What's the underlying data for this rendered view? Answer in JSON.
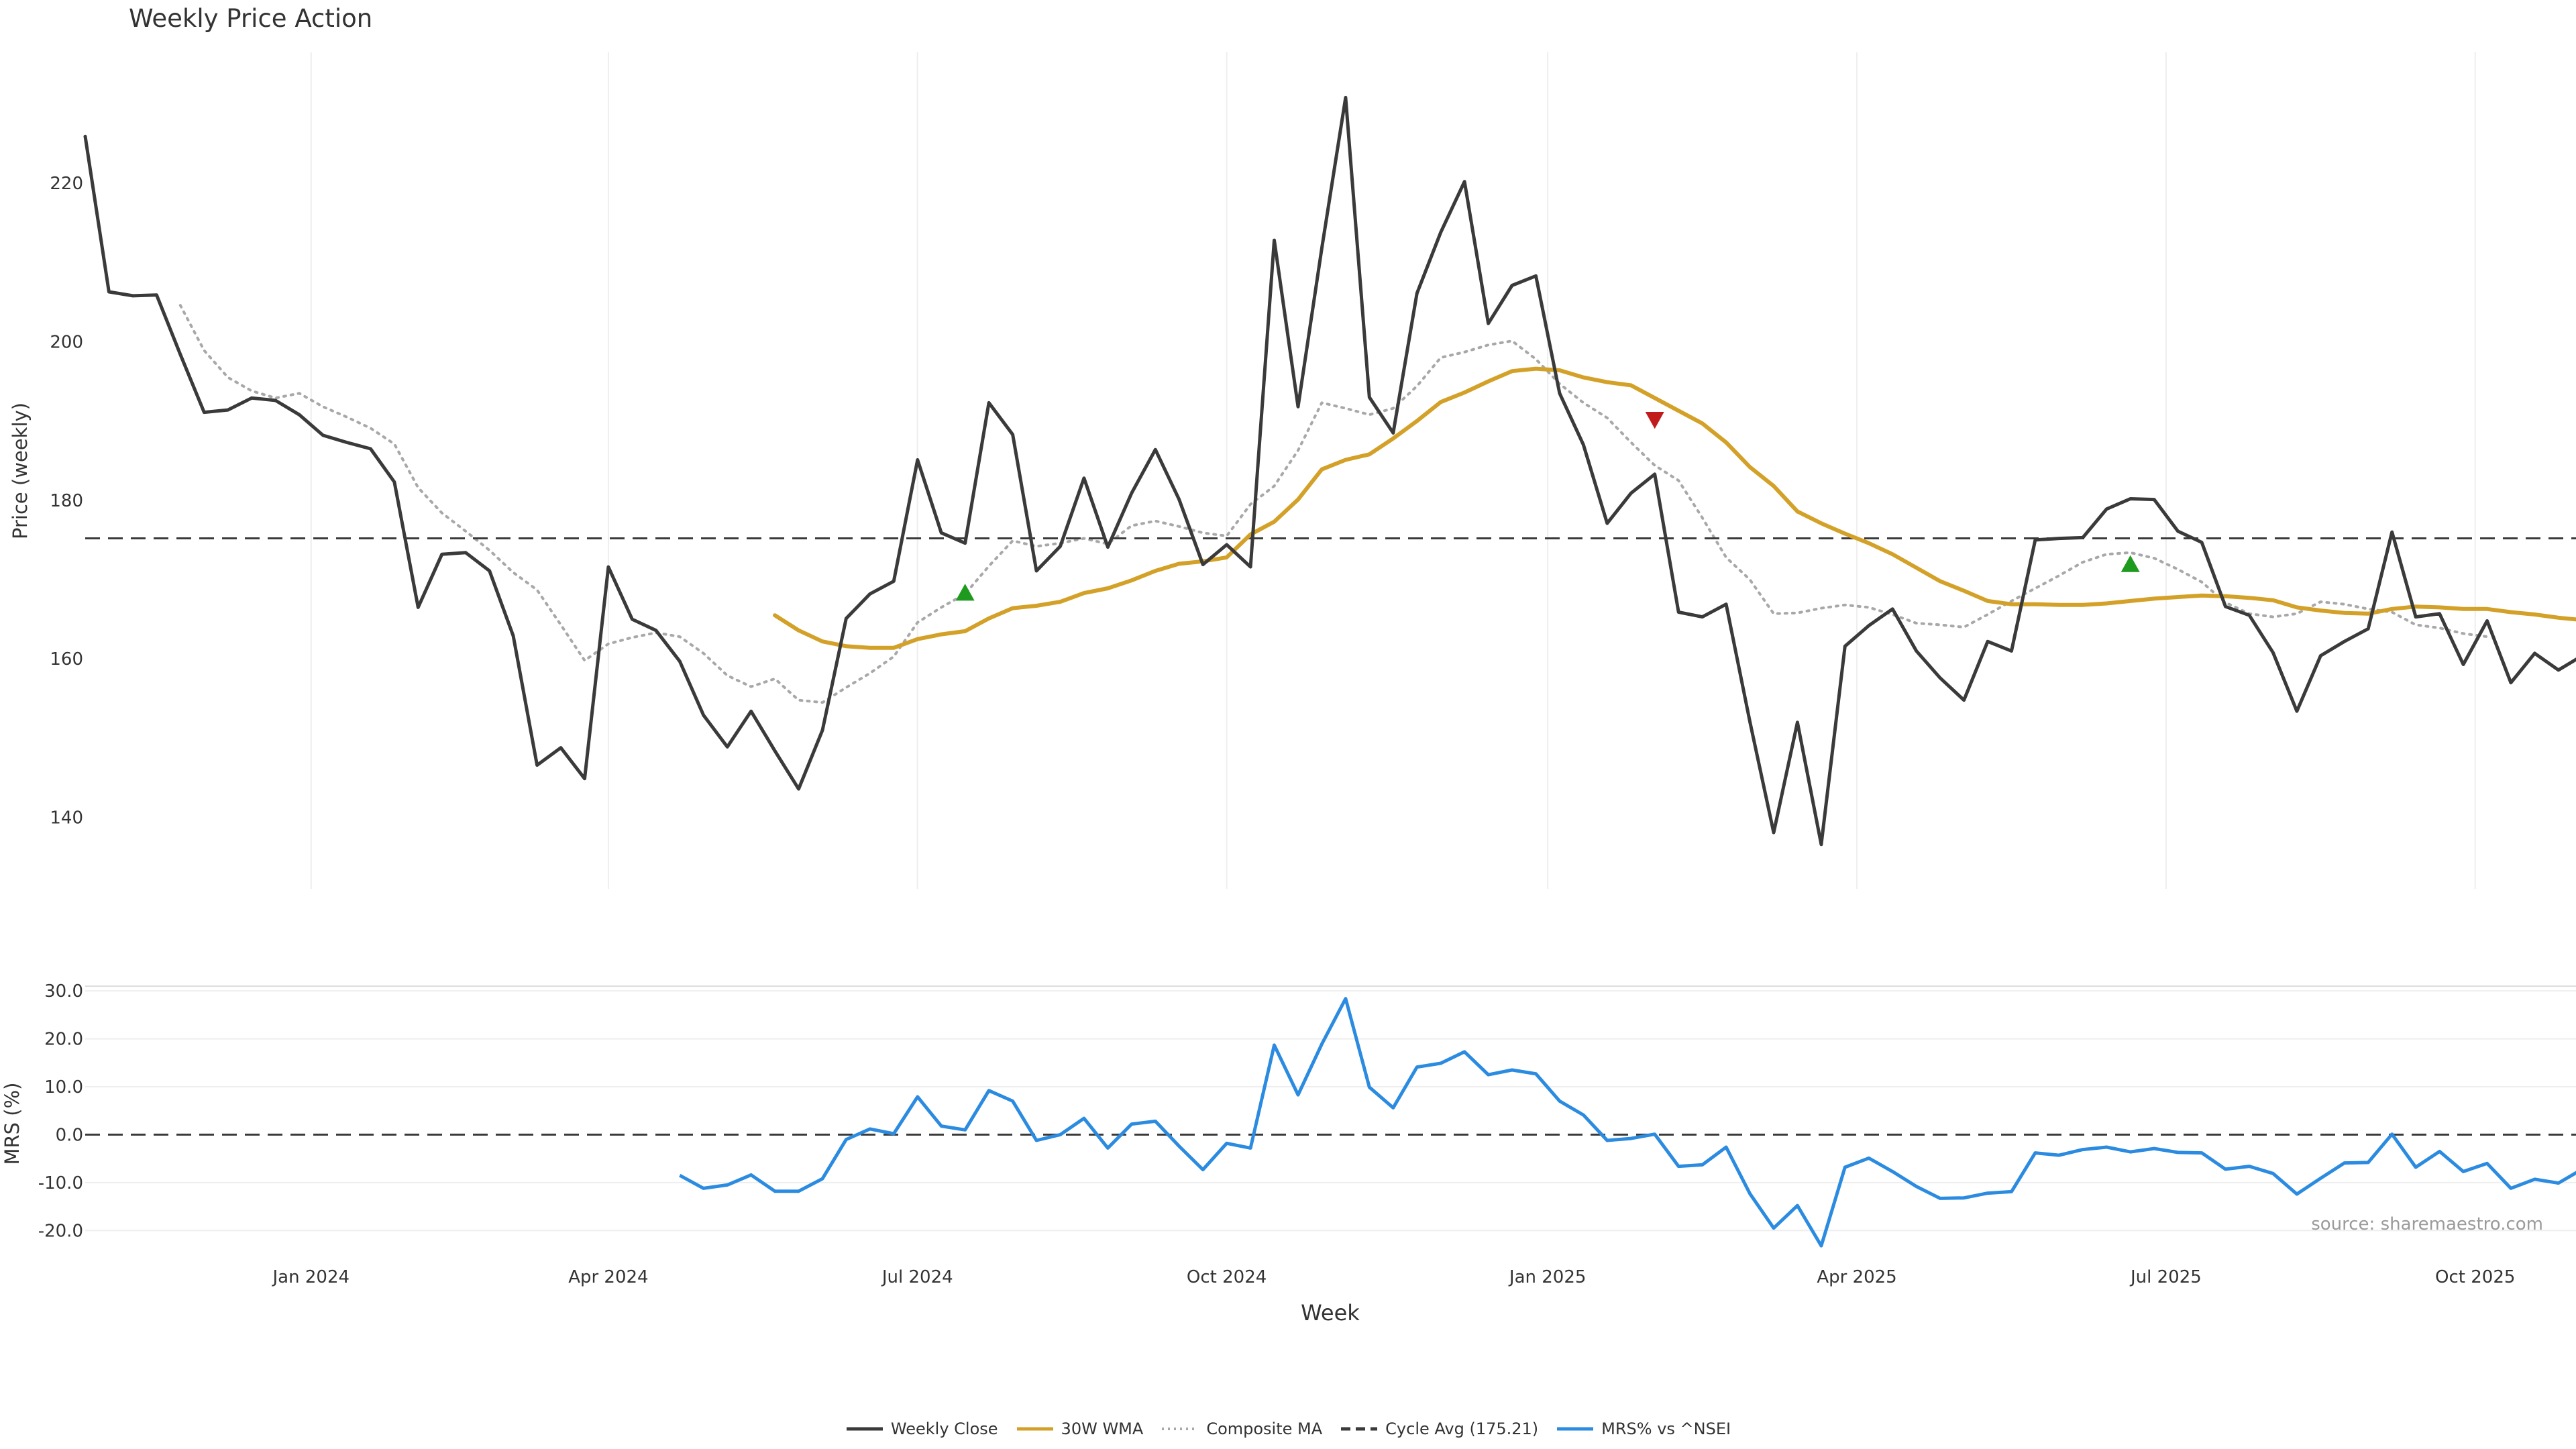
{
  "chart_data": {
    "title": "Weekly Price Action",
    "source": "source: sharemaestro.com",
    "xlabel": "Week",
    "x_ticks": [
      "Jan 2024",
      "Apr 2024",
      "Jul 2024",
      "Oct 2024",
      "Jan 2025",
      "Apr 2025",
      "Jul 2025",
      "Oct 2025"
    ],
    "panels": [
      {
        "type": "line",
        "ylabel": "Price (weekly)",
        "ylim": [
          131.0,
          236.5
        ],
        "y_ticks": [
          140,
          160,
          180,
          200,
          220
        ],
        "grid": "vertical",
        "series": [
          {
            "name": "Weekly Close",
            "color": "#3a3a3a",
            "style": "solid",
            "start_week": 0,
            "values": [
              225.9,
              206.3,
              205.8,
              205.9,
              198.4,
              191.1,
              191.4,
              192.9,
              192.6,
              190.8,
              188.2,
              187.3,
              186.5,
              182.3,
              166.5,
              173.2,
              173.4,
              171.1,
              162.9,
              146.6,
              148.8,
              144.9,
              171.6,
              165.0,
              163.6,
              159.7,
              152.9,
              148.9,
              153.4,
              148.4,
              143.6,
              151.0,
              165.1,
              168.2,
              169.8,
              185.1,
              175.9,
              174.6,
              192.3,
              188.3,
              171.1,
              174.2,
              182.8,
              174.1,
              180.9,
              186.4,
              180.1,
              171.9,
              174.4,
              171.6,
              212.8,
              191.8,
              211.8,
              230.8,
              193.0,
              188.5,
              206.1,
              213.8,
              220.2,
              202.3,
              207.1,
              208.3,
              193.5,
              187.0,
              177.1,
              180.9,
              183.3,
              165.9,
              165.3,
              166.9,
              152.1,
              138.1,
              152.0,
              136.6,
              161.6,
              164.2,
              166.3,
              161.0,
              157.6,
              154.8,
              162.2,
              161.0,
              175.0,
              175.2,
              175.3,
              178.9,
              180.2,
              180.1,
              176.1,
              174.7,
              166.6,
              165.5,
              160.8,
              153.4,
              160.4,
              162.2,
              163.8,
              176.0,
              165.3,
              165.7,
              159.3,
              164.8,
              157.0,
              160.7,
              158.6,
              160.4
            ]
          },
          {
            "name": "30W WMA",
            "color": "#d4a128",
            "style": "solid",
            "start_week": 29,
            "values": [
              165.5,
              163.6,
              162.2,
              161.6,
              161.4,
              161.4,
              162.5,
              163.1,
              163.5,
              165.1,
              166.4,
              166.7,
              167.2,
              168.3,
              168.9,
              169.9,
              171.1,
              172.0,
              172.3,
              172.8,
              175.7,
              177.3,
              180.1,
              183.9,
              185.1,
              185.8,
              187.8,
              190.0,
              192.4,
              193.6,
              195.0,
              196.3,
              196.6,
              196.4,
              195.5,
              194.9,
              194.5,
              192.9,
              191.3,
              189.7,
              187.3,
              184.2,
              181.8,
              178.6,
              177.1,
              175.8,
              174.6,
              173.2,
              171.5,
              169.8,
              168.6,
              167.3,
              166.9,
              166.9,
              166.8,
              166.8,
              167.0,
              167.3,
              167.6,
              167.8,
              168.0,
              167.9,
              167.7,
              167.4,
              166.5,
              166.1,
              165.8,
              165.7,
              166.3,
              166.6,
              166.5,
              166.3,
              166.3,
              165.9,
              165.6,
              165.2,
              164.9
            ]
          },
          {
            "name": "Composite MA",
            "color": "#a8a8a8",
            "style": "dotted",
            "start_week": 4,
            "values": [
              204.6,
              198.9,
              195.5,
              193.8,
              192.9,
              193.5,
              191.8,
              190.5,
              189.1,
              187.1,
              181.6,
              178.4,
              176.1,
              173.7,
              170.9,
              168.7,
              164.3,
              159.8,
              161.9,
              162.7,
              163.3,
              162.8,
              160.7,
              157.9,
              156.5,
              157.5,
              154.8,
              154.5,
              156.4,
              158.2,
              160.3,
              164.6,
              166.5,
              168.2,
              171.7,
              174.9,
              174.2,
              174.6,
              175.2,
              174.5,
              176.8,
              177.4,
              176.7,
              175.9,
              175.5,
              179.5,
              181.8,
              186.3,
              192.3,
              191.6,
              190.8,
              191.6,
              194.4,
              198.0,
              198.7,
              199.6,
              200.1,
              197.8,
              194.7,
              192.3,
              190.4,
              187.3,
              184.4,
              182.5,
              177.8,
              172.8,
              170.0,
              165.7,
              165.8,
              166.4,
              166.8,
              166.5,
              165.6,
              164.5,
              164.3,
              164.0,
              165.6,
              167.3,
              168.9,
              170.5,
              172.2,
              173.2,
              173.4,
              172.7,
              171.3,
              169.7,
              167.1,
              165.7,
              165.3,
              165.7,
              167.2,
              166.9,
              166.3,
              165.9,
              164.3,
              163.9,
              163.2,
              162.8
            ]
          },
          {
            "name": "Cycle Avg (175.21)",
            "color": "#3a3a3a",
            "style": "dashed",
            "constant": 175.21
          }
        ],
        "markers": [
          {
            "type": "buy",
            "shape": "triangle-up",
            "color": "#1e9a1e",
            "week": 37,
            "value": 168.3
          },
          {
            "type": "sell",
            "shape": "triangle-down",
            "color": "#c21b1b",
            "week": 66,
            "value": 190.2
          },
          {
            "type": "buy",
            "shape": "triangle-up",
            "color": "#1e9a1e",
            "week": 86,
            "value": 171.9
          }
        ]
      },
      {
        "type": "line",
        "ylabel": "MRS (%)",
        "ylim": [
          -25.0,
          31.0
        ],
        "y_ticks": [
          30.0,
          20.0,
          10.0,
          0.0,
          -10.0,
          -20.0
        ],
        "y_tick_labels": [
          "30.0",
          "20.0",
          "10.0",
          "0.0",
          "-10.0",
          "-20.0"
        ],
        "grid": "horizontal",
        "zero_line": 0,
        "series": [
          {
            "name": "MRS% vs ^NSEI",
            "color": "#2b8be0",
            "style": "solid",
            "start_week": 25,
            "values": [
              -8.5,
              -11.2,
              -10.5,
              -8.4,
              -11.8,
              -11.8,
              -9.2,
              -1.0,
              1.2,
              0.2,
              7.9,
              1.8,
              1.0,
              9.2,
              7.0,
              -1.2,
              0.0,
              3.4,
              -2.8,
              2.2,
              2.8,
              -2.4,
              -7.3,
              -1.8,
              -2.8,
              18.7,
              8.3,
              18.9,
              28.4,
              9.9,
              5.6,
              14.1,
              14.9,
              17.3,
              12.5,
              13.5,
              12.7,
              7.0,
              4.1,
              -1.2,
              -0.8,
              0.1,
              -6.6,
              -6.3,
              -2.6,
              -12.3,
              -19.5,
              -14.8,
              -23.2,
              -6.8,
              -4.9,
              -7.7,
              -10.8,
              -13.3,
              -13.2,
              -12.2,
              -11.9,
              -3.8,
              -4.3,
              -3.1,
              -2.6,
              -3.6,
              -2.9,
              -3.7,
              -3.8,
              -7.2,
              -6.6,
              -8.1,
              -12.4,
              -9.1,
              -5.9,
              -5.8,
              0.1,
              -6.8,
              -3.5,
              -7.7,
              -6.0,
              -11.2,
              -9.3,
              -10.1,
              -7.2
            ]
          }
        ]
      }
    ],
    "legend": {
      "placement": "bottom-center",
      "entries": [
        "Weekly Close",
        "30W WMA",
        "Composite MA",
        "Cycle Avg (175.21)",
        "MRS% vs ^NSEI"
      ]
    }
  }
}
